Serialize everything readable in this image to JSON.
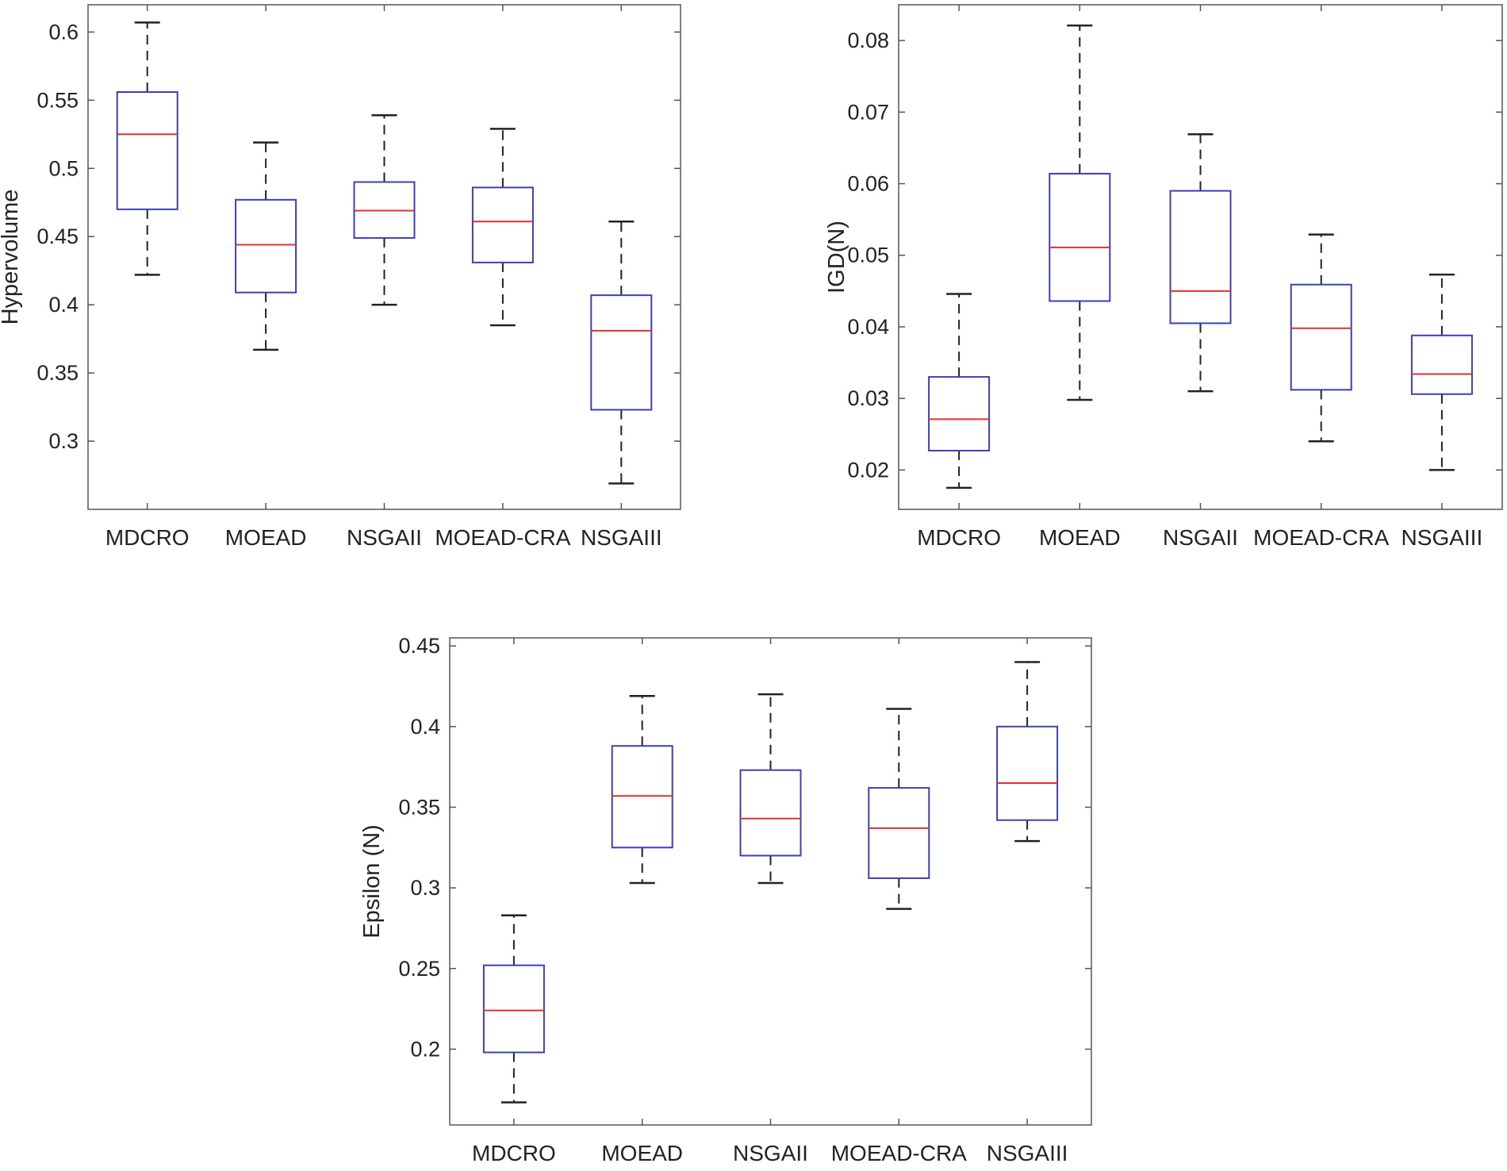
{
  "chart_data": [
    {
      "type": "boxplot",
      "title": "",
      "xlabel": "",
      "ylabel": "Hypervolume",
      "ylim": [
        0.25,
        0.62
      ],
      "yticks": [
        0.3,
        0.35,
        0.4,
        0.45,
        0.5,
        0.55,
        0.6
      ],
      "ytick_labels": [
        "0.3",
        "0.35",
        "0.4",
        "0.45",
        "0.5",
        "0.55",
        "0.6"
      ],
      "categories": [
        "MDCRO",
        "MOEAD",
        "NSGAII",
        "MOEAD-CRA",
        "NSGAIII"
      ],
      "boxes": [
        {
          "min": 0.422,
          "q1": 0.47,
          "median": 0.525,
          "q3": 0.556,
          "max": 0.607
        },
        {
          "min": 0.367,
          "q1": 0.409,
          "median": 0.444,
          "q3": 0.477,
          "max": 0.519
        },
        {
          "min": 0.4,
          "q1": 0.449,
          "median": 0.469,
          "q3": 0.49,
          "max": 0.539
        },
        {
          "min": 0.385,
          "q1": 0.431,
          "median": 0.461,
          "q3": 0.486,
          "max": 0.529
        },
        {
          "min": 0.269,
          "q1": 0.323,
          "median": 0.381,
          "q3": 0.407,
          "max": 0.461
        }
      ]
    },
    {
      "type": "boxplot",
      "title": "",
      "xlabel": "",
      "ylabel": "IGD(N)",
      "ylim": [
        0.0145,
        0.085
      ],
      "yticks": [
        0.02,
        0.03,
        0.04,
        0.05,
        0.06,
        0.07,
        0.08
      ],
      "ytick_labels": [
        "0.02",
        "0.03",
        "0.04",
        "0.05",
        "0.06",
        "0.07",
        "0.08"
      ],
      "categories": [
        "MDCRO",
        "MOEAD",
        "NSGAII",
        "MOEAD-CRA",
        "NSGAIII"
      ],
      "boxes": [
        {
          "min": 0.0175,
          "q1": 0.0227,
          "median": 0.0271,
          "q3": 0.033,
          "max": 0.0446
        },
        {
          "min": 0.0298,
          "q1": 0.0436,
          "median": 0.0511,
          "q3": 0.0614,
          "max": 0.0821
        },
        {
          "min": 0.031,
          "q1": 0.0405,
          "median": 0.045,
          "q3": 0.059,
          "max": 0.0669
        },
        {
          "min": 0.024,
          "q1": 0.0312,
          "median": 0.0398,
          "q3": 0.0459,
          "max": 0.0529
        },
        {
          "min": 0.02,
          "q1": 0.0306,
          "median": 0.0334,
          "q3": 0.0388,
          "max": 0.0473
        }
      ]
    },
    {
      "type": "boxplot",
      "title": "",
      "xlabel": "",
      "ylabel": "Epsilon (N)",
      "ylim": [
        0.153,
        0.455
      ],
      "yticks": [
        0.2,
        0.25,
        0.3,
        0.35,
        0.4,
        0.45
      ],
      "ytick_labels": [
        "0.2",
        "0.25",
        "0.3",
        "0.35",
        "0.4",
        "0.45"
      ],
      "categories": [
        "MDCRO",
        "MOEAD",
        "NSGAII",
        "MOEAD-CRA",
        "NSGAIII"
      ],
      "boxes": [
        {
          "min": 0.167,
          "q1": 0.198,
          "median": 0.224,
          "q3": 0.252,
          "max": 0.283
        },
        {
          "min": 0.303,
          "q1": 0.325,
          "median": 0.357,
          "q3": 0.388,
          "max": 0.419
        },
        {
          "min": 0.303,
          "q1": 0.32,
          "median": 0.343,
          "q3": 0.373,
          "max": 0.42
        },
        {
          "min": 0.287,
          "q1": 0.306,
          "median": 0.337,
          "q3": 0.362,
          "max": 0.411
        },
        {
          "min": 0.329,
          "q1": 0.342,
          "median": 0.365,
          "q3": 0.4,
          "max": 0.44
        }
      ]
    }
  ],
  "colors": {
    "box": "#3b3fb8",
    "median": "#e0302f",
    "whisker": "#222222",
    "frame": "#555555"
  }
}
